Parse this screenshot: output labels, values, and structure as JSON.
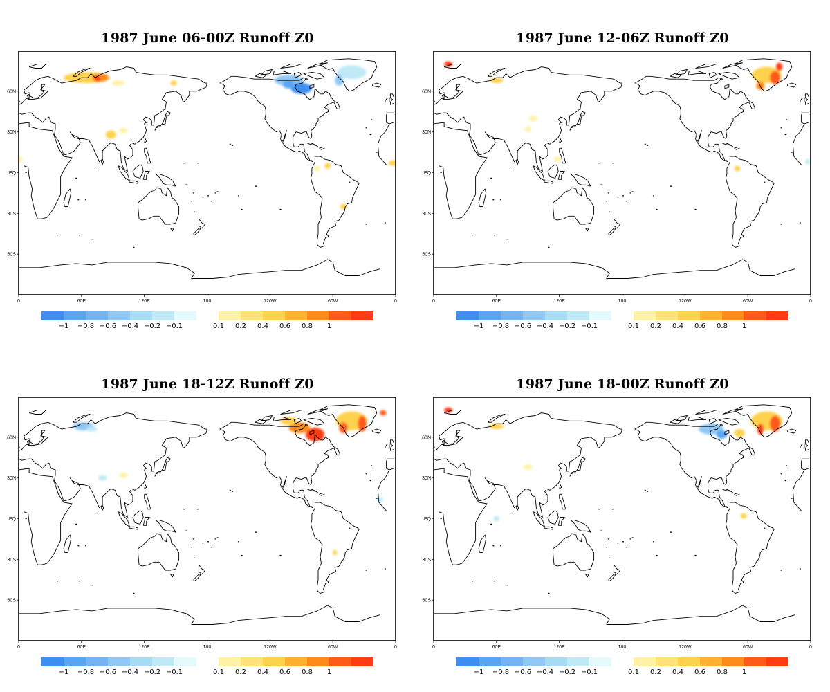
{
  "panels": [
    {
      "title": "1987 June 06-00Z Runoff Z0",
      "blobs": [
        {
          "lon": 65,
          "lat": 70,
          "rx": 22,
          "ry": 4,
          "color": "#ffd24d"
        },
        {
          "lon": 78,
          "lat": 70,
          "rx": 8,
          "ry": 3,
          "color": "#ff8c1a"
        },
        {
          "lon": 75,
          "lat": 69,
          "rx": 3,
          "ry": 2,
          "color": "#ff3c14"
        },
        {
          "lon": 95,
          "lat": 66,
          "rx": 6,
          "ry": 2,
          "color": "#fff2a6"
        },
        {
          "lon": 148,
          "lat": 66,
          "rx": 3,
          "ry": 2,
          "color": "#ffd24d"
        },
        {
          "lon": 88,
          "lat": 28,
          "rx": 5,
          "ry": 3,
          "color": "#ffd24d"
        },
        {
          "lon": 100,
          "lat": 31,
          "rx": 4,
          "ry": 2,
          "color": "#fff2a6"
        },
        {
          "lon": 0,
          "lat": 10,
          "rx": 4,
          "ry": 2,
          "color": "#fff2a6"
        },
        {
          "lon": 358,
          "lat": 7,
          "rx": 5,
          "ry": 2,
          "color": "#ffd24d"
        },
        {
          "lon": 295,
          "lat": 5,
          "rx": 3,
          "ry": 2,
          "color": "#ffd24d"
        },
        {
          "lon": 285,
          "lat": 3,
          "rx": 3,
          "ry": 2,
          "color": "#fff2a6"
        },
        {
          "lon": 258,
          "lat": 68,
          "rx": 14,
          "ry": 4,
          "color": "#8fc8f5"
        },
        {
          "lon": 270,
          "lat": 62,
          "rx": 10,
          "ry": 4,
          "color": "#3e8ff0"
        },
        {
          "lon": 258,
          "lat": 65,
          "rx": 6,
          "ry": 3,
          "color": "#5aa6f0"
        },
        {
          "lon": 318,
          "lat": 74,
          "rx": 14,
          "ry": 5,
          "color": "#bfe9f5"
        },
        {
          "lon": 306,
          "lat": 68,
          "rx": 4,
          "ry": 4,
          "color": "#8fc8f5"
        },
        {
          "lon": 310,
          "lat": -25,
          "rx": 3,
          "ry": 2,
          "color": "#ffd24d"
        }
      ]
    },
    {
      "title": "1987 June 12-06Z Runoff Z0",
      "blobs": [
        {
          "lon": 318,
          "lat": 72,
          "rx": 14,
          "ry": 6,
          "color": "#ffd24d"
        },
        {
          "lon": 326,
          "lat": 70,
          "rx": 5,
          "ry": 5,
          "color": "#ff5a1a"
        },
        {
          "lon": 312,
          "lat": 64,
          "rx": 4,
          "ry": 3,
          "color": "#ff8c1a"
        },
        {
          "lon": 330,
          "lat": 78,
          "rx": 3,
          "ry": 3,
          "color": "#ff3c14"
        },
        {
          "lon": 60,
          "lat": 68,
          "rx": 6,
          "ry": 2,
          "color": "#ffd24d"
        },
        {
          "lon": 95,
          "lat": 40,
          "rx": 4,
          "ry": 2,
          "color": "#fff2a6"
        },
        {
          "lon": 90,
          "lat": 32,
          "rx": 3,
          "ry": 2,
          "color": "#fff2a6"
        },
        {
          "lon": 14,
          "lat": 80,
          "rx": 4,
          "ry": 2,
          "color": "#ff3c14"
        },
        {
          "lon": 290,
          "lat": 3,
          "rx": 3,
          "ry": 2,
          "color": "#ffd24d"
        },
        {
          "lon": 118,
          "lat": 10,
          "rx": 3,
          "ry": 2,
          "color": "#fff2a6"
        },
        {
          "lon": 357,
          "lat": 8,
          "rx": 2,
          "ry": 2,
          "color": "#bfe9f5"
        }
      ]
    },
    {
      "title": "1987 June 18-12Z Runoff Z0",
      "blobs": [
        {
          "lon": 318,
          "lat": 72,
          "rx": 15,
          "ry": 7,
          "color": "#ffd24d"
        },
        {
          "lon": 328,
          "lat": 70,
          "rx": 4,
          "ry": 6,
          "color": "#ff5a1a"
        },
        {
          "lon": 310,
          "lat": 67,
          "rx": 4,
          "ry": 4,
          "color": "#ff5a1a"
        },
        {
          "lon": 283,
          "lat": 62,
          "rx": 9,
          "ry": 5,
          "color": "#ff3c14"
        },
        {
          "lon": 268,
          "lat": 67,
          "rx": 10,
          "ry": 4,
          "color": "#ff8c1a"
        },
        {
          "lon": 258,
          "lat": 72,
          "rx": 8,
          "ry": 3,
          "color": "#ffd24d"
        },
        {
          "lon": 62,
          "lat": 68,
          "rx": 10,
          "ry": 3,
          "color": "#8fc8f5"
        },
        {
          "lon": 70,
          "lat": 66,
          "rx": 5,
          "ry": 2,
          "color": "#bfe9f5"
        },
        {
          "lon": 80,
          "lat": 30,
          "rx": 4,
          "ry": 2,
          "color": "#bfe9f5"
        },
        {
          "lon": 100,
          "lat": 32,
          "rx": 4,
          "ry": 2,
          "color": "#fff2a6"
        },
        {
          "lon": 302,
          "lat": -25,
          "rx": 2,
          "ry": 2,
          "color": "#ffd24d"
        },
        {
          "lon": 345,
          "lat": 14,
          "rx": 3,
          "ry": 2,
          "color": "#bfe9f5"
        },
        {
          "lon": 348,
          "lat": 78,
          "rx": 3,
          "ry": 2,
          "color": "#ff5a1a"
        }
      ]
    },
    {
      "title": "1987 June 18-00Z Runoff Z0",
      "blobs": [
        {
          "lon": 318,
          "lat": 72,
          "rx": 15,
          "ry": 7,
          "color": "#ffd24d"
        },
        {
          "lon": 326,
          "lat": 70,
          "rx": 5,
          "ry": 6,
          "color": "#ff5a1a"
        },
        {
          "lon": 312,
          "lat": 66,
          "rx": 3,
          "ry": 4,
          "color": "#ff3c14"
        },
        {
          "lon": 265,
          "lat": 66,
          "rx": 12,
          "ry": 4,
          "color": "#8fc8f5"
        },
        {
          "lon": 275,
          "lat": 62,
          "rx": 5,
          "ry": 3,
          "color": "#5aa6f0"
        },
        {
          "lon": 292,
          "lat": 63,
          "rx": 5,
          "ry": 3,
          "color": "#ffd24d"
        },
        {
          "lon": 60,
          "lat": 68,
          "rx": 7,
          "ry": 2,
          "color": "#ffd24d"
        },
        {
          "lon": 90,
          "lat": 38,
          "rx": 4,
          "ry": 2,
          "color": "#fff2a6"
        },
        {
          "lon": 14,
          "lat": 80,
          "rx": 4,
          "ry": 2,
          "color": "#ff3c14"
        },
        {
          "lon": 296,
          "lat": 2,
          "rx": 3,
          "ry": 2,
          "color": "#ffd24d"
        },
        {
          "lon": 60,
          "lat": 0,
          "rx": 3,
          "ry": 2,
          "color": "#bfe9f5"
        }
      ]
    }
  ],
  "lat_labels": [
    "60N",
    "30N",
    "EQ",
    "30S",
    "60S"
  ],
  "lon_labels": [
    "0",
    "60E",
    "120E",
    "180",
    "120W",
    "60W",
    "0"
  ],
  "colorbar": {
    "colors": [
      "#3e8ff0",
      "#5aa6f0",
      "#74b4f3",
      "#8fc8f5",
      "#a8dcf5",
      "#bfe9f5",
      "#e3fbfc",
      "#ffffff",
      "#fff2a6",
      "#ffe27a",
      "#ffd24d",
      "#ffb22e",
      "#ff8c1a",
      "#ff5a1a",
      "#ff3c14"
    ],
    "labels": [
      "-1",
      "-0.8",
      "-0.6",
      "-0.4",
      "-0.2",
      "-0.1",
      "0.1",
      "0.2",
      "0.4",
      "0.6",
      "0.8",
      "1"
    ]
  }
}
